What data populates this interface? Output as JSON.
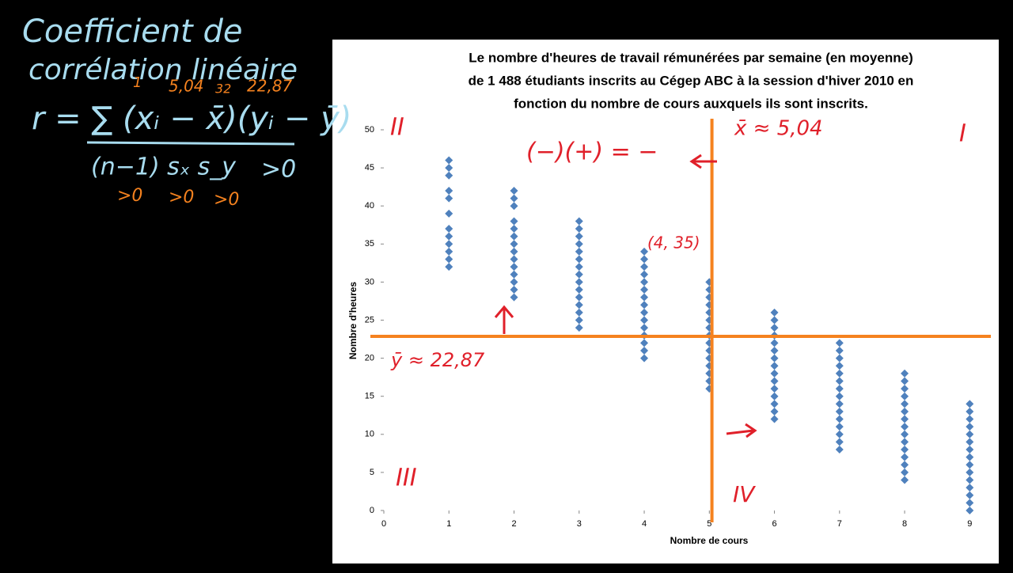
{
  "chart_data": {
    "type": "scatter",
    "title": [
      "Le nombre d'heures de travail rémunérées par semaine (en moyenne)",
      "de 1 488 étudiants inscrits au Cégep ABC à la session d'hiver 2010 en",
      "fonction du nombre de cours auxquels ils sont inscrits."
    ],
    "xlabel": "Nombre de cours",
    "ylabel": "Nombre d'heures",
    "color": "#4f81bd",
    "xlim": [
      0,
      9.3
    ],
    "xticks": [
      0,
      1,
      2,
      3,
      4,
      5,
      6,
      7,
      8,
      9
    ],
    "ylim": [
      0,
      50
    ],
    "yticks": [
      0,
      5,
      10,
      15,
      20,
      25,
      30,
      35,
      40,
      45,
      50
    ],
    "x": [
      1,
      1,
      1,
      1,
      1,
      1,
      1,
      1,
      1,
      1,
      1,
      1,
      2,
      2,
      2,
      2,
      2,
      2,
      2,
      2,
      2,
      2,
      2,
      2,
      2,
      2,
      3,
      3,
      3,
      3,
      3,
      3,
      3,
      3,
      3,
      3,
      3,
      3,
      3,
      3,
      3,
      4,
      4,
      4,
      4,
      4,
      4,
      4,
      4,
      4,
      4,
      4,
      4,
      4,
      4,
      4,
      5,
      5,
      5,
      5,
      5,
      5,
      5,
      5,
      5,
      5,
      5,
      5,
      5,
      5,
      5,
      6,
      6,
      6,
      6,
      6,
      6,
      6,
      6,
      6,
      6,
      6,
      6,
      6,
      6,
      6,
      7,
      7,
      7,
      7,
      7,
      7,
      7,
      7,
      7,
      7,
      7,
      7,
      7,
      7,
      7,
      8,
      8,
      8,
      8,
      8,
      8,
      8,
      8,
      8,
      8,
      8,
      8,
      8,
      8,
      8,
      9,
      9,
      9,
      9,
      9,
      9,
      9,
      9,
      9,
      9,
      9,
      9,
      9,
      9,
      9
    ],
    "y": [
      32,
      33,
      34,
      35,
      36,
      37,
      39,
      41,
      42,
      44,
      45,
      46,
      28,
      29,
      30,
      31,
      32,
      33,
      34,
      35,
      36,
      37,
      38,
      40,
      41,
      42,
      24,
      25,
      26,
      27,
      28,
      29,
      30,
      31,
      32,
      33,
      34,
      35,
      36,
      37,
      38,
      20,
      21,
      22,
      23,
      24,
      25,
      26,
      27,
      28,
      29,
      30,
      31,
      32,
      33,
      34,
      16,
      17,
      18,
      19,
      20,
      21,
      22,
      23,
      24,
      25,
      26,
      27,
      28,
      29,
      30,
      12,
      13,
      14,
      15,
      16,
      17,
      18,
      19,
      20,
      21,
      22,
      23,
      24,
      25,
      26,
      8,
      9,
      10,
      11,
      12,
      13,
      14,
      15,
      16,
      17,
      18,
      19,
      20,
      21,
      22,
      4,
      5,
      6,
      7,
      8,
      9,
      10,
      11,
      12,
      13,
      14,
      15,
      16,
      17,
      18,
      0,
      1,
      2,
      3,
      4,
      5,
      6,
      7,
      8,
      9,
      10,
      11,
      12,
      13,
      14
    ],
    "mean_lines": {
      "x": 5.04,
      "y": 22.87,
      "color": "#f5821f"
    }
  },
  "annotations": {
    "heading": [
      "Coefficient de",
      "corrélation linéaire"
    ],
    "formula_numerator": "r = ∑ (xᵢ − x̄)(yᵢ − ȳ)",
    "formula_denominator": "(n−1) sₓ s_y",
    "denominator_sign": ">0",
    "above_labels": [
      "1",
      "5,04",
      "32",
      "22,87"
    ],
    "below_labels": [
      ">0",
      ">0",
      ">0"
    ],
    "quadrants": [
      "II",
      "I",
      "III",
      "IV"
    ],
    "sign_rule": "(−)(+) = −",
    "x_mean_label": "x̄ ≈ 5,04",
    "y_mean_label": "ȳ ≈ 22,87",
    "point_label": "(4, 35)"
  }
}
